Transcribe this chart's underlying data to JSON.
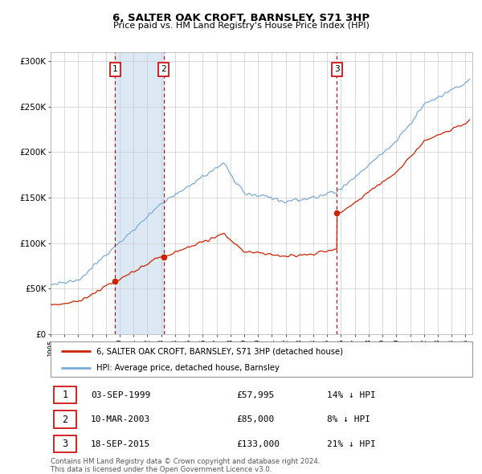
{
  "title": "6, SALTER OAK CROFT, BARNSLEY, S71 3HP",
  "subtitle": "Price paid vs. HM Land Registry's House Price Index (HPI)",
  "purchases": [
    {
      "num": 1,
      "date_label": "03-SEP-1999",
      "price": 57995,
      "pct": "14%",
      "x_year": 1999.67
    },
    {
      "num": 2,
      "date_label": "10-MAR-2003",
      "price": 85000,
      "pct": "8%",
      "x_year": 2003.19
    },
    {
      "num": 3,
      "date_label": "18-SEP-2015",
      "price": 133000,
      "pct": "21%",
      "x_year": 2015.71
    }
  ],
  "legend_line1": "6, SALTER OAK CROFT, BARNSLEY, S71 3HP (detached house)",
  "legend_line2": "HPI: Average price, detached house, Barnsley",
  "footnote1": "Contains HM Land Registry data © Crown copyright and database right 2024.",
  "footnote2": "This data is licensed under the Open Government Licence v3.0.",
  "hpi_color": "#7aabdb",
  "price_color": "#cc2200",
  "marker_color": "#cc2200",
  "shading_color": "#dce9f5",
  "vline_color": "#cc0000",
  "ylim": [
    0,
    310000
  ],
  "xlim_start": 1995.0,
  "xlim_end": 2025.5,
  "hpi_seed": 10,
  "red_seed": 77
}
